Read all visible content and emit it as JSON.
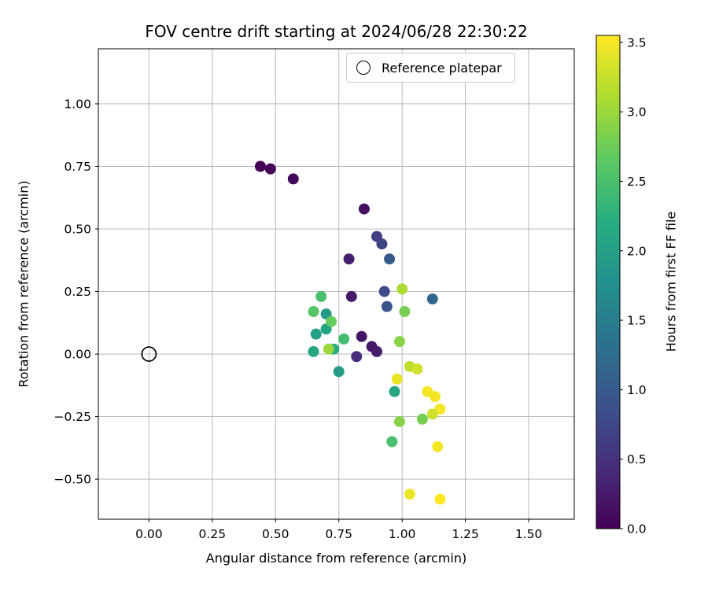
{
  "chart_data": {
    "type": "scatter",
    "title": "FOV centre drift starting at 2024/06/28 22:30:22",
    "xlabel": "Angular distance from reference (arcmin)",
    "ylabel": "Rotation from reference (arcmin)",
    "grid": true,
    "grid_color": "#b0b0b0",
    "xlim": [
      -0.2,
      1.68
    ],
    "ylim": [
      -0.66,
      1.22
    ],
    "xticks": {
      "values": [
        0.0,
        0.25,
        0.5,
        0.75,
        1.0,
        1.25,
        1.5
      ],
      "labels": [
        "0.00",
        "0.25",
        "0.50",
        "0.75",
        "1.00",
        "1.25",
        "1.50"
      ]
    },
    "yticks": {
      "values": [
        -0.5,
        -0.25,
        0.0,
        0.25,
        0.5,
        0.75,
        1.0
      ],
      "labels": [
        "−0.50",
        "−0.25",
        "0.00",
        "0.25",
        "0.50",
        "0.75",
        "1.00"
      ]
    },
    "legend": {
      "label": "Reference platepar",
      "position": "upper right"
    },
    "reference_point": {
      "x": 0.0,
      "y": 0.0
    },
    "colorbar": {
      "label": "Hours from first FF file",
      "vmin": 0.0,
      "vmax": 3.55,
      "tick_values": [
        0.0,
        0.5,
        1.0,
        1.5,
        2.0,
        2.5,
        3.0,
        3.5
      ],
      "tick_labels": [
        "0.0",
        "0.5",
        "1.0",
        "1.5",
        "2.0",
        "2.5",
        "3.0",
        "3.5"
      ],
      "colormap": "viridis",
      "colormap_stops": [
        [
          0.0,
          "#440154"
        ],
        [
          0.125,
          "#472d7b"
        ],
        [
          0.25,
          "#3b528b"
        ],
        [
          0.375,
          "#2c728e"
        ],
        [
          0.5,
          "#21918c"
        ],
        [
          0.625,
          "#28ae80"
        ],
        [
          0.75,
          "#5ec962"
        ],
        [
          0.875,
          "#addc30"
        ],
        [
          1.0,
          "#fde725"
        ]
      ]
    },
    "points": {
      "columns": [
        "x",
        "y",
        "hours"
      ],
      "rows": [
        [
          0.44,
          0.75,
          0.0
        ],
        [
          0.48,
          0.74,
          0.03
        ],
        [
          0.57,
          0.7,
          0.08
        ],
        [
          0.85,
          0.58,
          0.15
        ],
        [
          0.79,
          0.38,
          0.3
        ],
        [
          0.8,
          0.23,
          0.25
        ],
        [
          0.84,
          0.07,
          0.2
        ],
        [
          0.88,
          0.03,
          0.22
        ],
        [
          0.9,
          0.01,
          0.28
        ],
        [
          0.82,
          -0.01,
          0.45
        ],
        [
          0.9,
          0.47,
          0.65
        ],
        [
          0.92,
          0.44,
          0.7
        ],
        [
          0.95,
          0.38,
          1.0
        ],
        [
          0.93,
          0.25,
          0.8
        ],
        [
          0.94,
          0.19,
          0.9
        ],
        [
          1.12,
          0.22,
          1.15
        ],
        [
          0.7,
          0.16,
          1.9
        ],
        [
          0.7,
          0.1,
          2.05
        ],
        [
          0.66,
          0.08,
          2.0
        ],
        [
          0.65,
          0.01,
          2.1
        ],
        [
          0.73,
          0.02,
          2.2
        ],
        [
          0.75,
          -0.07,
          1.95
        ],
        [
          0.97,
          -0.15,
          2.1
        ],
        [
          0.68,
          0.23,
          2.5
        ],
        [
          0.65,
          0.17,
          2.6
        ],
        [
          0.72,
          0.13,
          2.7
        ],
        [
          0.77,
          0.06,
          2.45
        ],
        [
          0.96,
          -0.35,
          2.5
        ],
        [
          1.01,
          0.17,
          2.8
        ],
        [
          0.99,
          0.05,
          2.9
        ],
        [
          0.99,
          -0.27,
          2.9
        ],
        [
          1.08,
          -0.26,
          2.8
        ],
        [
          0.71,
          0.02,
          3.0
        ],
        [
          1.0,
          0.26,
          3.1
        ],
        [
          1.03,
          -0.05,
          3.2
        ],
        [
          1.06,
          -0.06,
          3.3
        ],
        [
          0.98,
          -0.1,
          3.45
        ],
        [
          1.1,
          -0.15,
          3.5
        ],
        [
          1.13,
          -0.17,
          3.5
        ],
        [
          1.15,
          -0.22,
          3.5
        ],
        [
          1.12,
          -0.24,
          3.3
        ],
        [
          1.14,
          -0.37,
          3.5
        ],
        [
          1.03,
          -0.56,
          3.45
        ],
        [
          1.15,
          -0.58,
          3.55
        ]
      ]
    }
  }
}
